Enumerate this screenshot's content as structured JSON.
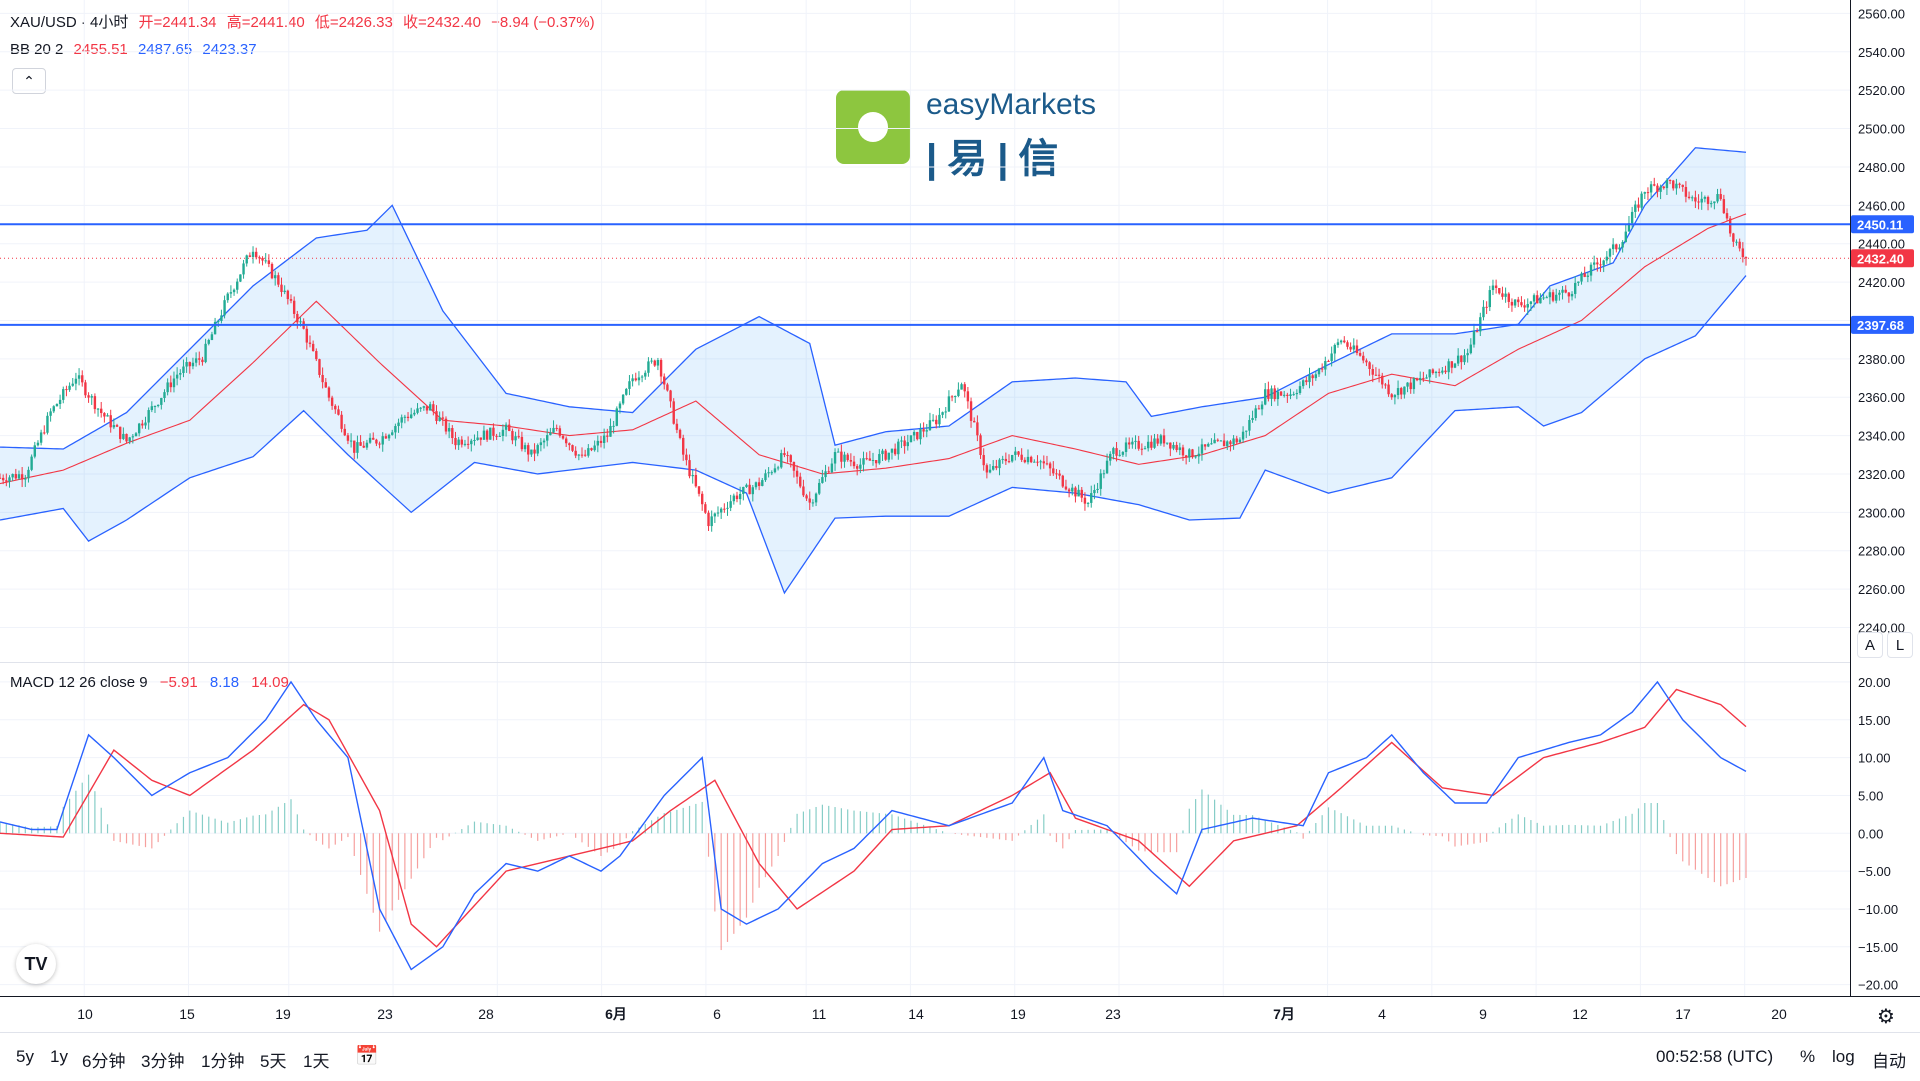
{
  "header": {
    "symbol": "XAU/USD · 4小时",
    "open": "开=2441.34",
    "high": "高=2441.40",
    "low": "低=2426.33",
    "close": "收=2432.40",
    "change": "−8.94 (−0.37%)"
  },
  "bb": {
    "label": "BB 20 2",
    "mid": "2455.51",
    "upper": "2487.65",
    "lower": "2423.37"
  },
  "collapse_icon": "chevron-up-icon",
  "logo": {
    "text_en": "easyMarkets",
    "text_cn": "|易|信"
  },
  "scale_buttons": {
    "auto": "A",
    "log": "L"
  },
  "macd": {
    "label": "MACD 12 26 close 9",
    "hist": "−5.91",
    "macd": "8.18",
    "signal": "14.09"
  },
  "tv_logo": "TV",
  "bottom": {
    "ranges": [
      "5y",
      "1y",
      "6分钟",
      "3分钟",
      "1分钟",
      "5天",
      "1天"
    ],
    "date_icon": "calendar-icon",
    "time": "00:52:58 (UTC)",
    "percent": "%",
    "log": "log",
    "auto": "自动"
  },
  "colors": {
    "up": "#22ab94",
    "down": "#f23645",
    "bb_band": "#2962ff",
    "bb_mid": "#f23645",
    "hline": "#2962ff"
  },
  "chart_data": [
    {
      "type": "candlestick",
      "title": "XAU/USD · 4小时",
      "y_ticks": [
        2240,
        2260,
        2280,
        2300,
        2320,
        2340,
        2360,
        2380,
        2400,
        2420,
        2440,
        2460,
        2480,
        2500,
        2520,
        2540,
        2560
      ],
      "ylim": [
        2222,
        2567
      ],
      "x_ticks": [
        "10",
        "15",
        "19",
        "23",
        "28",
        "6月",
        "6",
        "11",
        "14",
        "19",
        "23",
        "7月",
        "4",
        "9",
        "12",
        "17",
        "20"
      ],
      "horizontal_lines": [
        {
          "value": 2450.11,
          "label": "2450.11"
        },
        {
          "value": 2397.68,
          "label": "2397.68"
        }
      ],
      "last_price": {
        "value": 2432.4,
        "label": "2432.40"
      },
      "close_anchors": [
        [
          0,
          2318
        ],
        [
          8,
          2320
        ],
        [
          16,
          2352
        ],
        [
          24,
          2371
        ],
        [
          32,
          2352
        ],
        [
          40,
          2337
        ],
        [
          48,
          2354
        ],
        [
          56,
          2372
        ],
        [
          64,
          2381
        ],
        [
          72,
          2412
        ],
        [
          80,
          2438
        ],
        [
          88,
          2420
        ],
        [
          96,
          2395
        ],
        [
          104,
          2360
        ],
        [
          112,
          2333
        ],
        [
          120,
          2338
        ],
        [
          128,
          2350
        ],
        [
          136,
          2355
        ],
        [
          144,
          2337
        ],
        [
          152,
          2340
        ],
        [
          160,
          2343
        ],
        [
          168,
          2330
        ],
        [
          176,
          2344
        ],
        [
          184,
          2328
        ],
        [
          192,
          2340
        ],
        [
          200,
          2370
        ],
        [
          208,
          2380
        ],
        [
          216,
          2330
        ],
        [
          224,
          2295
        ],
        [
          232,
          2308
        ],
        [
          240,
          2315
        ],
        [
          248,
          2330
        ],
        [
          256,
          2305
        ],
        [
          264,
          2330
        ],
        [
          272,
          2325
        ],
        [
          280,
          2330
        ],
        [
          288,
          2338
        ],
        [
          296,
          2348
        ],
        [
          304,
          2368
        ],
        [
          312,
          2320
        ],
        [
          320,
          2330
        ],
        [
          328,
          2328
        ],
        [
          336,
          2316
        ],
        [
          344,
          2305
        ],
        [
          352,
          2332
        ],
        [
          360,
          2335
        ],
        [
          368,
          2338
        ],
        [
          376,
          2330
        ],
        [
          384,
          2335
        ],
        [
          392,
          2338
        ],
        [
          400,
          2362
        ],
        [
          408,
          2362
        ],
        [
          416,
          2372
        ],
        [
          424,
          2390
        ],
        [
          432,
          2378
        ],
        [
          440,
          2362
        ],
        [
          448,
          2368
        ],
        [
          456,
          2375
        ],
        [
          464,
          2383
        ],
        [
          472,
          2418
        ],
        [
          480,
          2408
        ],
        [
          488,
          2412
        ],
        [
          496,
          2415
        ],
        [
          504,
          2428
        ],
        [
          512,
          2440
        ],
        [
          520,
          2468
        ],
        [
          528,
          2472
        ],
        [
          536,
          2462
        ],
        [
          544,
          2465
        ],
        [
          548,
          2440
        ],
        [
          552,
          2432.4
        ]
      ],
      "bb_mid": [
        [
          0,
          2315
        ],
        [
          20,
          2322
        ],
        [
          40,
          2336
        ],
        [
          60,
          2348
        ],
        [
          80,
          2378
        ],
        [
          100,
          2410
        ],
        [
          120,
          2378
        ],
        [
          140,
          2348
        ],
        [
          160,
          2345
        ],
        [
          180,
          2340
        ],
        [
          200,
          2343
        ],
        [
          220,
          2358
        ],
        [
          240,
          2330
        ],
        [
          260,
          2320
        ],
        [
          280,
          2323
        ],
        [
          300,
          2328
        ],
        [
          320,
          2340
        ],
        [
          340,
          2333
        ],
        [
          360,
          2325
        ],
        [
          380,
          2330
        ],
        [
          400,
          2340
        ],
        [
          420,
          2362
        ],
        [
          440,
          2372
        ],
        [
          460,
          2366
        ],
        [
          480,
          2385
        ],
        [
          500,
          2400
        ],
        [
          520,
          2428
        ],
        [
          540,
          2448
        ],
        [
          552,
          2455.51
        ]
      ],
      "bb_upper": [
        [
          0,
          2334
        ],
        [
          20,
          2333
        ],
        [
          40,
          2352
        ],
        [
          60,
          2385
        ],
        [
          80,
          2418
        ],
        [
          100,
          2443
        ],
        [
          116,
          2447
        ],
        [
          124,
          2460
        ],
        [
          140,
          2405
        ],
        [
          160,
          2362
        ],
        [
          180,
          2355
        ],
        [
          200,
          2352
        ],
        [
          220,
          2385
        ],
        [
          240,
          2402
        ],
        [
          256,
          2388
        ],
        [
          264,
          2335
        ],
        [
          280,
          2342
        ],
        [
          300,
          2345
        ],
        [
          320,
          2368
        ],
        [
          340,
          2370
        ],
        [
          356,
          2368
        ],
        [
          364,
          2350
        ],
        [
          380,
          2355
        ],
        [
          400,
          2360
        ],
        [
          420,
          2377
        ],
        [
          440,
          2393
        ],
        [
          460,
          2393
        ],
        [
          480,
          2398
        ],
        [
          490,
          2418
        ],
        [
          510,
          2430
        ],
        [
          520,
          2460
        ],
        [
          536,
          2490
        ],
        [
          552,
          2487.65
        ]
      ],
      "bb_lower": [
        [
          0,
          2296
        ],
        [
          20,
          2302
        ],
        [
          28,
          2285
        ],
        [
          40,
          2296
        ],
        [
          60,
          2318
        ],
        [
          80,
          2329
        ],
        [
          96,
          2353
        ],
        [
          110,
          2330
        ],
        [
          130,
          2300
        ],
        [
          150,
          2326
        ],
        [
          170,
          2320
        ],
        [
          200,
          2326
        ],
        [
          220,
          2322
        ],
        [
          236,
          2310
        ],
        [
          248,
          2258
        ],
        [
          264,
          2297
        ],
        [
          280,
          2298
        ],
        [
          300,
          2298
        ],
        [
          320,
          2313
        ],
        [
          340,
          2310
        ],
        [
          360,
          2304
        ],
        [
          376,
          2296
        ],
        [
          392,
          2297
        ],
        [
          400,
          2322
        ],
        [
          420,
          2310
        ],
        [
          440,
          2318
        ],
        [
          460,
          2353
        ],
        [
          480,
          2355
        ],
        [
          488,
          2345
        ],
        [
          500,
          2352
        ],
        [
          520,
          2380
        ],
        [
          536,
          2392
        ],
        [
          552,
          2423.37
        ]
      ]
    },
    {
      "type": "line",
      "title": "MACD 12 26 close 9",
      "y_ticks": [
        -20,
        -15,
        -10,
        -5,
        0,
        5,
        10,
        15,
        20
      ],
      "ylim": [
        -21.5,
        22.5
      ],
      "series": [
        {
          "name": "MACD",
          "color": "#2962ff",
          "anchors": [
            [
              0,
              1.5
            ],
            [
              10,
              0.5
            ],
            [
              18,
              0.5
            ],
            [
              28,
              13
            ],
            [
              36,
              10
            ],
            [
              48,
              5
            ],
            [
              60,
              8
            ],
            [
              72,
              10
            ],
            [
              84,
              15
            ],
            [
              92,
              20
            ],
            [
              100,
              15
            ],
            [
              110,
              10
            ],
            [
              120,
              -10
            ],
            [
              130,
              -18
            ],
            [
              140,
              -15
            ],
            [
              150,
              -8
            ],
            [
              160,
              -4
            ],
            [
              170,
              -5
            ],
            [
              180,
              -3
            ],
            [
              190,
              -5
            ],
            [
              196,
              -3
            ],
            [
              210,
              5
            ],
            [
              222,
              10
            ],
            [
              228,
              -10
            ],
            [
              236,
              -12
            ],
            [
              246,
              -10
            ],
            [
              260,
              -4
            ],
            [
              270,
              -2
            ],
            [
              282,
              3
            ],
            [
              300,
              1
            ],
            [
              320,
              4
            ],
            [
              330,
              10
            ],
            [
              336,
              3
            ],
            [
              350,
              1
            ],
            [
              364,
              -5
            ],
            [
              372,
              -8
            ],
            [
              380,
              0.5
            ],
            [
              396,
              2
            ],
            [
              412,
              1
            ],
            [
              420,
              8
            ],
            [
              432,
              10
            ],
            [
              440,
              13
            ],
            [
              450,
              8
            ],
            [
              460,
              4
            ],
            [
              470,
              4
            ],
            [
              480,
              10
            ],
            [
              496,
              12
            ],
            [
              506,
              13
            ],
            [
              516,
              16
            ],
            [
              524,
              20
            ],
            [
              532,
              15
            ],
            [
              544,
              10
            ],
            [
              552,
              8.18
            ]
          ]
        },
        {
          "name": "Signal",
          "color": "#f23645",
          "anchors": [
            [
              0,
              0
            ],
            [
              20,
              -0.5
            ],
            [
              36,
              11
            ],
            [
              48,
              7
            ],
            [
              60,
              5
            ],
            [
              80,
              11
            ],
            [
              96,
              17
            ],
            [
              104,
              15
            ],
            [
              120,
              3
            ],
            [
              130,
              -12
            ],
            [
              138,
              -15
            ],
            [
              160,
              -5
            ],
            [
              180,
              -3
            ],
            [
              200,
              -1
            ],
            [
              212,
              3
            ],
            [
              226,
              7
            ],
            [
              240,
              -4
            ],
            [
              252,
              -10
            ],
            [
              270,
              -5
            ],
            [
              282,
              0.5
            ],
            [
              300,
              1
            ],
            [
              320,
              5
            ],
            [
              332,
              8
            ],
            [
              340,
              2
            ],
            [
              360,
              -1
            ],
            [
              376,
              -7
            ],
            [
              390,
              -1
            ],
            [
              410,
              1
            ],
            [
              424,
              6
            ],
            [
              440,
              12
            ],
            [
              456,
              6
            ],
            [
              472,
              5
            ],
            [
              488,
              10
            ],
            [
              506,
              12
            ],
            [
              520,
              14
            ],
            [
              530,
              19
            ],
            [
              544,
              17
            ],
            [
              552,
              14.09
            ]
          ]
        }
      ],
      "histogram_color_up": "#26a69a",
      "histogram_color_down": "#ef5350"
    }
  ]
}
